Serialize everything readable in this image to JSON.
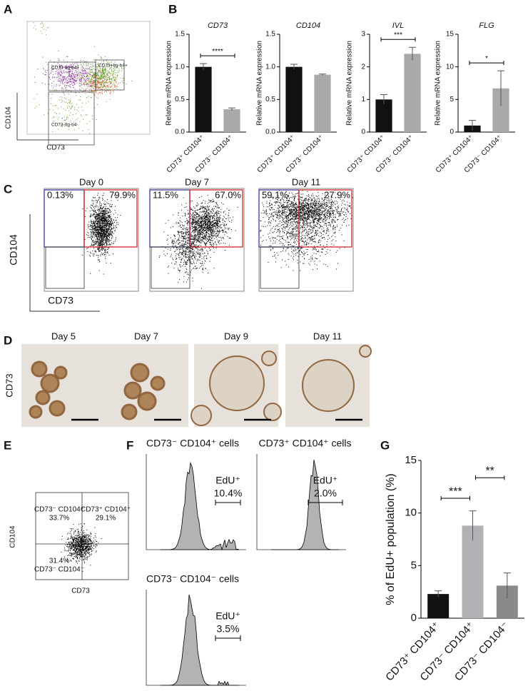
{
  "panels": {
    "A": {
      "label": "A",
      "gates": [
        "CD73-Itg-b4+",
        "CD73+Itg-b4+",
        "CD73-Itg-b4-"
      ],
      "y_axis": "CD104",
      "x_axis": "CD73"
    },
    "B": {
      "label": "B"
    },
    "C": {
      "label": "C",
      "y_axis": "CD104",
      "x_axis": "CD73",
      "plots": [
        {
          "title": "Day 0",
          "left": "0.13%",
          "right": "79.9%"
        },
        {
          "title": "Day 7",
          "left": "11.5%",
          "right": "67.0%"
        },
        {
          "title": "Day 11",
          "left": "59.1%",
          "right": "27.9%"
        }
      ]
    },
    "D": {
      "label": "D",
      "y_axis": "CD73",
      "titles": [
        "Day 5",
        "Day 7",
        "Day 9",
        "Day 11"
      ]
    },
    "E": {
      "label": "E",
      "y_axis": "CD104",
      "x_axis": "CD73",
      "quadrants": [
        "CD73⁻ CD104⁺",
        "33.7%",
        "CD73⁺ CD104⁺",
        "29.1%",
        "31.4%",
        "CD73⁻ CD104⁻"
      ]
    },
    "F": {
      "label": "F",
      "plots": [
        {
          "title": "CD73⁻ CD104⁺ cells",
          "gate": "EdU⁺",
          "percent": "10.4%"
        },
        {
          "title": "CD73⁺ CD104⁺ cells",
          "gate": "EdU⁺",
          "percent": "2.0%"
        },
        {
          "title": "CD73⁻ CD104⁻ cells",
          "gate": "EdU⁺",
          "percent": "3.5%"
        }
      ]
    },
    "G": {
      "label": "G"
    }
  },
  "chart_data": [
    {
      "type": "bar",
      "title": "CD73",
      "y_label": "Relative mRNA expression",
      "categories": [
        "CD73⁺ CD104⁺",
        "CD73⁻ CD104⁺"
      ],
      "values": [
        1.0,
        0.35
      ],
      "errors": [
        0.05,
        0.02
      ],
      "colors": [
        "#111111",
        "#aaa8ab"
      ],
      "ylim": [
        0,
        1.5
      ],
      "yticks": [
        {
          "value": 0,
          "label": "0.0"
        },
        0.5,
        {
          "value": 1,
          "label": "1.0"
        },
        1.5
      ],
      "significance": [
        "****"
      ]
    },
    {
      "type": "bar",
      "title": "CD104",
      "y_label": "Relative mRNA expression",
      "categories": [
        "CD73⁺ CD104⁺",
        "CD73⁻ CD104⁺"
      ],
      "values": [
        1.0,
        0.88
      ],
      "errors": [
        0.04,
        0.01
      ],
      "colors": [
        "#111111",
        "#aaa8ab"
      ],
      "ylim": [
        0,
        1.5
      ],
      "yticks": [
        {
          "value": 0,
          "label": "0.0"
        },
        0.5,
        {
          "value": 1,
          "label": "1.0"
        },
        1.5
      ],
      "significance": []
    },
    {
      "type": "bar",
      "title": "IVL",
      "y_label": "Relative mRNA expression",
      "categories": [
        "CD73⁺ CD104⁺",
        "CD73⁻ CD104⁺"
      ],
      "values": [
        1.0,
        2.4
      ],
      "errors": [
        0.15,
        0.2
      ],
      "colors": [
        "#111111",
        "#aaa8ab"
      ],
      "ylim": [
        0,
        3
      ],
      "yticks": [
        0,
        1,
        2,
        3
      ],
      "significance": [
        "***"
      ]
    },
    {
      "type": "bar",
      "title": "FLG",
      "y_label": "Relative mRNA expression",
      "categories": [
        "CD73⁺ CD104⁺",
        "CD73⁻ CD104⁺"
      ],
      "values": [
        1.0,
        6.7
      ],
      "errors": [
        0.8,
        2.7
      ],
      "colors": [
        "#111111",
        "#aaa8ab"
      ],
      "ylim": [
        0,
        15
      ],
      "yticks": [
        0,
        5,
        10,
        15
      ],
      "significance": [
        "*"
      ]
    },
    {
      "type": "bar",
      "y_label": "% of EdU+ population (%)",
      "categories": [
        "CD73⁺ CD104⁺",
        "CD73⁻ CD104⁺",
        "CD73⁻ CD104⁻"
      ],
      "values": [
        2.3,
        8.8,
        3.1
      ],
      "errors": [
        0.3,
        1.4,
        1.2
      ],
      "colors": [
        "#111111",
        "#b1b1b5",
        "#8a8a8a"
      ],
      "ylim": [
        0,
        15
      ],
      "yticks": [
        0,
        5,
        10,
        15
      ],
      "significance": [
        "***",
        "**"
      ]
    }
  ]
}
